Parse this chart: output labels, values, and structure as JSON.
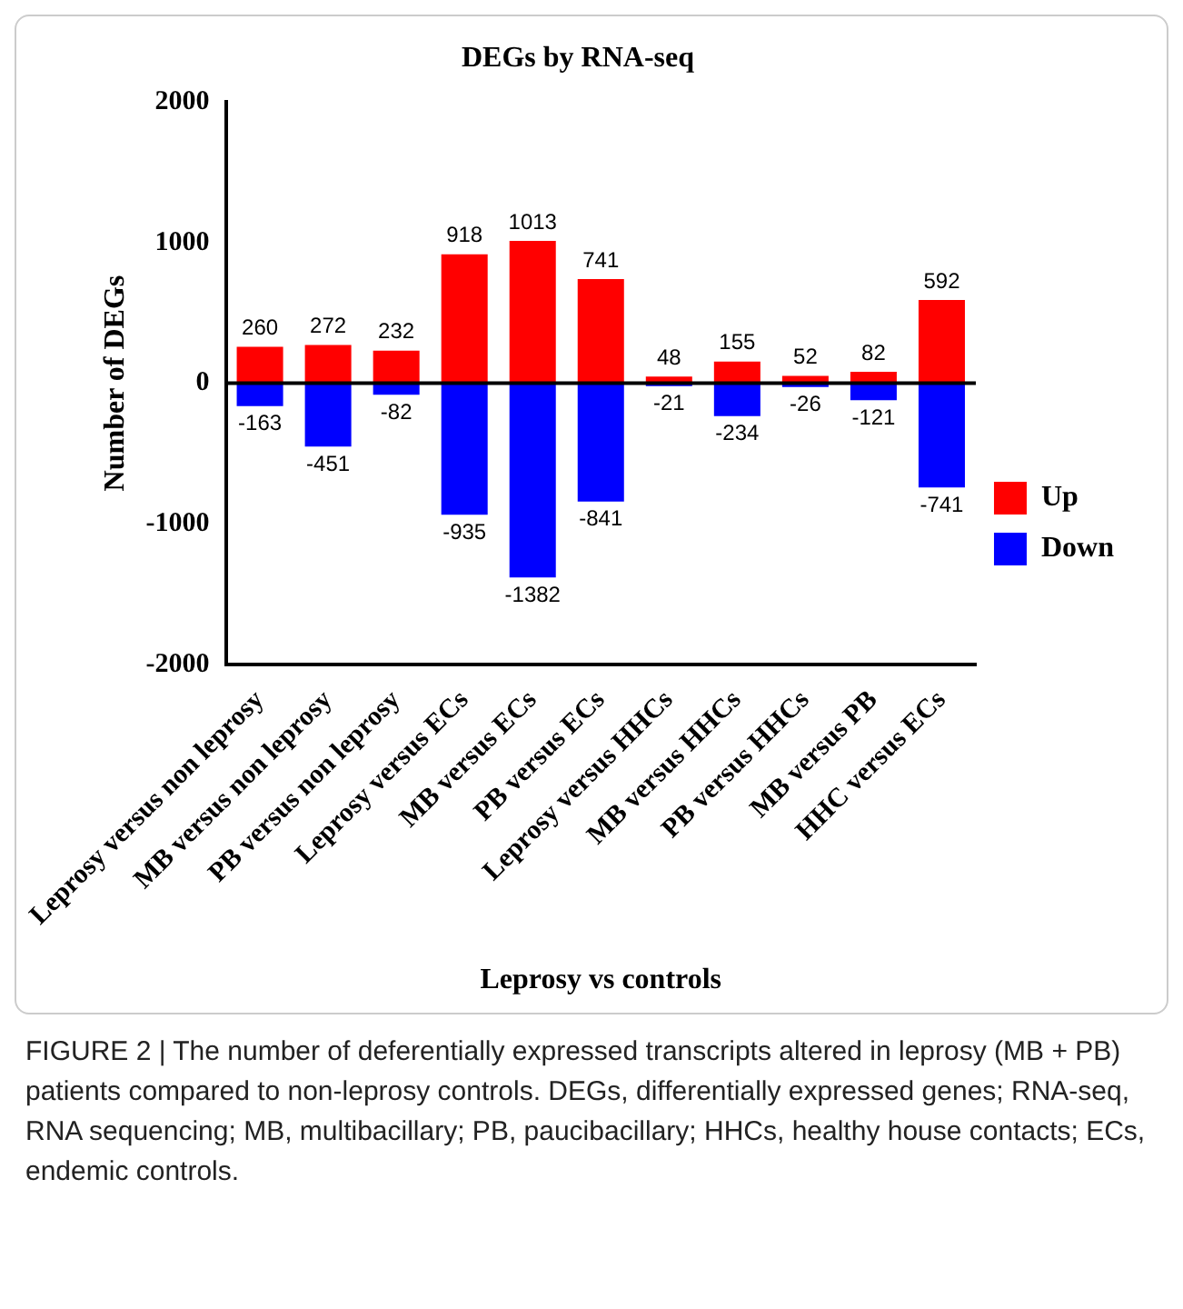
{
  "chart_data": {
    "type": "bar",
    "title": "DEGs by RNA-seq",
    "xlabel": "Leprosy vs controls",
    "ylabel": "Number of DEGs",
    "categories": [
      "Leprosy versus non leprosy",
      "MB versus non leprosy",
      "PB versus non leprosy",
      "Leprosy versus ECs",
      "MB versus ECs",
      "PB versus ECs",
      "Leprosy versus HHCs",
      "MB versus HHCs",
      "PB versus HHCs",
      "MB versus PB",
      "HHC versus ECs"
    ],
    "series": [
      {
        "name": "Up",
        "color": "#ff0000",
        "values": [
          260,
          272,
          232,
          918,
          1013,
          741,
          48,
          155,
          52,
          82,
          592
        ]
      },
      {
        "name": "Down",
        "color": "#0000ff",
        "values": [
          -163,
          -451,
          -82,
          -935,
          -1382,
          -841,
          -21,
          -234,
          -26,
          -121,
          -741
        ]
      }
    ],
    "stacked": true,
    "ylim": [
      -2000,
      2000
    ],
    "yticks": [
      -2000,
      -1000,
      0,
      1000,
      2000
    ],
    "grid": false,
    "legend": "right",
    "data_labels": true,
    "ref_lines": [
      {
        "axis": "y",
        "value": 0,
        "color": "#000000"
      }
    ],
    "annotations": [
      "FIGURE 2 | The number of deferentially expressed transcripts altered in leprosy (MB + PB) patients compared to non-leprosy controls. DEGs, differentially expressed genes; RNA-seq, RNA sequencing; MB, multibacillary; PB, paucibacillary; HHCs, healthy house contacts; ECs, endemic controls."
    ]
  }
}
